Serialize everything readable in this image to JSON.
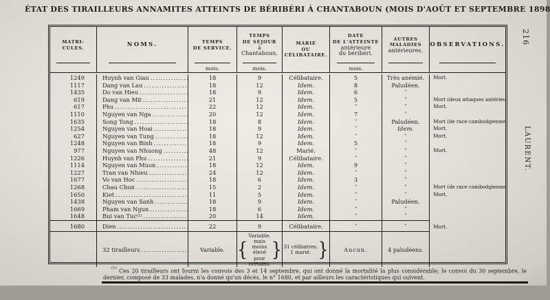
{
  "page": {
    "title": "ÉTAT DES TIRAILLEURS ANNAMITES ATTEINTS DE BÉRIBÉRI À CHANTABOUN (MOIS D'AOÛT ET SEPTEMBRE 1898).",
    "page_number": "216",
    "margin_author": "LAURENT."
  },
  "table": {
    "ditto_mark": "”",
    "columns": [
      {
        "id": "matricules",
        "lines": [
          "MATRI-",
          "CULES."
        ],
        "sub": null,
        "rule": true
      },
      {
        "id": "noms",
        "lines": [
          "NOMS."
        ],
        "sub": null,
        "rule": true
      },
      {
        "id": "service",
        "lines": [
          "TEMPS",
          "DE SERVICE."
        ],
        "sub": "mois.",
        "rule": true
      },
      {
        "id": "sejour",
        "lines": [
          "TEMPS",
          "DE SÉJOUR",
          "à",
          "Chantaboun."
        ],
        "sub": "mois.",
        "rule": true
      },
      {
        "id": "etat",
        "lines": [
          "MARIÉ",
          "OU",
          "CÉLIBATAIRE."
        ],
        "sub": null,
        "rule": false
      },
      {
        "id": "date",
        "lines": [
          "DATE",
          "DE L'ATTEINTE",
          "antérieure",
          "du béribéri."
        ],
        "sub": "mois.",
        "rule": true
      },
      {
        "id": "autres",
        "lines": [
          "AUTRES",
          "MALADIES",
          "antérieures."
        ],
        "sub": null,
        "rule": true
      },
      {
        "id": "observations",
        "lines": [
          "OBSERVATIONS."
        ],
        "sub": null,
        "rule": true
      }
    ],
    "rows": [
      {
        "matricule": "1249",
        "nom": "Huynh van Giau",
        "service": "18",
        "sejour": "9",
        "etat": "Célibataire.",
        "date": "5",
        "autres": "Très anémié.",
        "obs": "Mort."
      },
      {
        "matricule": "1117",
        "nom": "Dang van Lau",
        "service": "18",
        "sejour": "12",
        "etat": "Idem.",
        "date": "8",
        "autres": "Paludéen.",
        "obs": ""
      },
      {
        "matricule": "1435",
        "nom": "Do van Hieu",
        "service": "18",
        "sejour": "9",
        "etat": "Idem.",
        "date": "6",
        "autres": "”",
        "obs": ""
      },
      {
        "matricule": "619",
        "nom": "Dang van Mit",
        "service": "21",
        "sejour": "12",
        "etat": "Idem.",
        "date": "5",
        "autres": "”",
        "obs": "Mort (deux attaques antérieures)."
      },
      {
        "matricule": "617",
        "nom": "Phu",
        "service": "22",
        "sejour": "12",
        "etat": "Idem.",
        "date": "”",
        "autres": "”",
        "obs": "Mort."
      },
      {
        "matricule": "1110",
        "nom": "Nguyen van Nga",
        "service": "20",
        "sejour": "12",
        "etat": "Idem.",
        "date": "7",
        "autres": "”",
        "obs": ""
      },
      {
        "matricule": "1635",
        "nom": "Song Tong",
        "service": "18",
        "sejour": "8",
        "etat": "Idem.",
        "date": "”",
        "autres": "Paludéen.",
        "obs": "Mort (de race cambodgienne)."
      },
      {
        "matricule": "1254",
        "nom": "Nguyen van Hoai",
        "service": "18",
        "sejour": "9",
        "etat": "Idem.",
        "date": "”",
        "autres": "Idem.",
        "obs": "Mort."
      },
      {
        "matricule": "627",
        "nom": "Nguyen van Tung",
        "service": "18",
        "sejour": "12",
        "etat": "Idem.",
        "date": "”",
        "autres": "”",
        "obs": "Mort."
      },
      {
        "matricule": "1248",
        "nom": "Nguyen van Binh",
        "service": "18",
        "sejour": "9",
        "etat": "Idem.",
        "date": "5",
        "autres": "”",
        "obs": ""
      },
      {
        "matricule": "977",
        "nom": "Nguyen van Nhuong",
        "service": "48",
        "sejour": "12",
        "etat": "Marié.",
        "date": "”",
        "autres": "”",
        "obs": "Mort."
      },
      {
        "matricule": "1226",
        "nom": "Huynh van Phu",
        "service": "21",
        "sejour": "9",
        "etat": "Célibataire.",
        "date": "”",
        "autres": "”",
        "obs": ""
      },
      {
        "matricule": "1114",
        "nom": "Nguyen van Muon",
        "service": "18",
        "sejour": "12",
        "etat": "Idem.",
        "date": "9",
        "autres": "”",
        "obs": ""
      },
      {
        "matricule": "1227",
        "nom": "Tran van Nhieu",
        "service": "24",
        "sejour": "12",
        "etat": "Idem.",
        "date": "”",
        "autres": "”",
        "obs": ""
      },
      {
        "matricule": "1677",
        "nom": "Vo van Hoc",
        "service": "18",
        "sejour": "6",
        "etat": "Idem.",
        "date": "3",
        "autres": "”",
        "obs": ""
      },
      {
        "matricule": "1268",
        "nom": "Chau Chun",
        "service": "15",
        "sejour": "2",
        "etat": "Idem.",
        "date": "”",
        "autres": "”",
        "obs": "Mort (de race cambodgienne)."
      },
      {
        "matricule": "1650",
        "nom": "Kiet",
        "service": "11",
        "sejour": "5",
        "etat": "Idem.",
        "date": "”",
        "autres": "”",
        "obs": "Mort."
      },
      {
        "matricule": "1438",
        "nom": "Nguyen van Sanh",
        "service": "18",
        "sejour": "9",
        "etat": "Idem.",
        "date": "”",
        "autres": "Paludéen.",
        "obs": ""
      },
      {
        "matricule": "1669",
        "nom": "Pham van Ngun",
        "service": "18",
        "sejour": "6",
        "etat": "Idem.",
        "date": "”",
        "autres": "”",
        "obs": ""
      },
      {
        "matricule": "1648",
        "nom": "Bui van Tuc",
        "ref": "(1)",
        "service": "20",
        "sejour": "14",
        "etat": "Idem.",
        "date": "”",
        "autres": "”",
        "obs": ""
      }
    ],
    "dien_row": {
      "matricule": "1680",
      "nom": "Dien",
      "service": "22",
      "sejour": "9",
      "etat": "Célibataire.",
      "date": "”",
      "autres": "”",
      "obs": "Mort."
    },
    "summary": {
      "noms": "32 tirailleurs",
      "service": "Variable.",
      "sejour": "Variable, mais moins élevé pour certains.",
      "etat": "31 célibatres, 1 marié.",
      "date": "Aucun.",
      "autres": "4 paludéens.",
      "observations": ""
    }
  },
  "footnote": {
    "marker": "(1)",
    "text": "Ces 20 tirailleurs ont fourni les convois des 3 et 14 septembre, qui ont donné la mortalité la plus considérable; le convoi du 30 septembre, le dernier, composé de 33 malades, n'a donné qu'un décès, le n° 1680, et par ailleurs les caractéristiques qui suivent."
  }
}
